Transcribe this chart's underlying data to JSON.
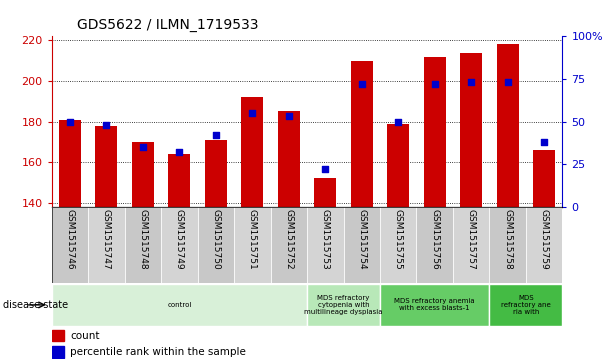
{
  "title": "GDS5622 / ILMN_1719533",
  "samples": [
    "GSM1515746",
    "GSM1515747",
    "GSM1515748",
    "GSM1515749",
    "GSM1515750",
    "GSM1515751",
    "GSM1515752",
    "GSM1515753",
    "GSM1515754",
    "GSM1515755",
    "GSM1515756",
    "GSM1515757",
    "GSM1515758",
    "GSM1515759"
  ],
  "counts": [
    181,
    178,
    170,
    164,
    171,
    192,
    185,
    152,
    210,
    179,
    212,
    214,
    218,
    166
  ],
  "percentiles": [
    50,
    48,
    35,
    32,
    42,
    55,
    53,
    22,
    72,
    50,
    72,
    73,
    73,
    38
  ],
  "ylim_left": [
    138,
    222
  ],
  "ylim_right": [
    0,
    100
  ],
  "yticks_left": [
    140,
    160,
    180,
    200,
    220
  ],
  "yticks_right": [
    0,
    25,
    50,
    75,
    100
  ],
  "bar_color": "#cc0000",
  "dot_color": "#0000cc",
  "background_color": "#ffffff",
  "grid_color": "#000000",
  "disease_groups": [
    {
      "label": "control",
      "start": 0,
      "end": 7,
      "color": "#d8f0d8"
    },
    {
      "label": "MDS refractory\ncytopenia with\nmultilineage dysplasia",
      "start": 7,
      "end": 9,
      "color": "#b8e8b8"
    },
    {
      "label": "MDS refractory anemia\nwith excess blasts-1",
      "start": 9,
      "end": 12,
      "color": "#66cc66"
    },
    {
      "label": "MDS\nrefractory ane\nria with",
      "start": 12,
      "end": 14,
      "color": "#44bb44"
    }
  ],
  "legend_count_label": "count",
  "legend_pct_label": "percentile rank within the sample",
  "disease_state_label": "disease state"
}
